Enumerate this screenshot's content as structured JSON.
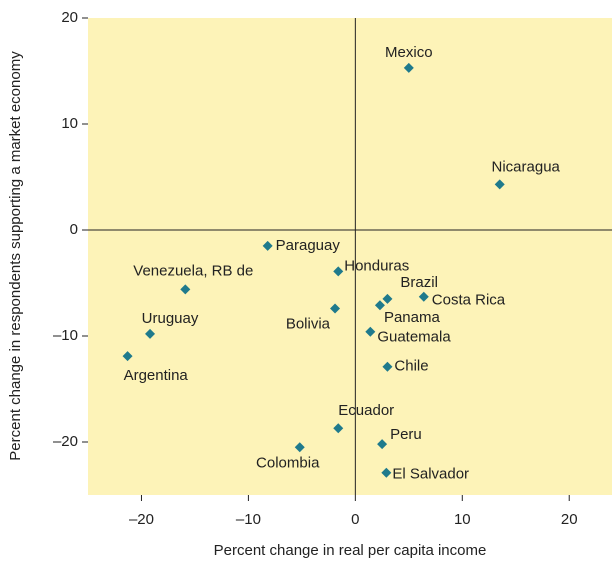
{
  "chart_data": {
    "type": "scatter",
    "x_label": "Percent change in real per capita income",
    "y_label": "Percent change in respondents supporting a market economy",
    "labels": [
      "Mexico",
      "Nicaragua",
      "Paraguay",
      "Honduras",
      "Venezuela, RB de",
      "Brazil",
      "Costa Rica",
      "Panama",
      "Bolivia",
      "Uruguay",
      "Guatemala",
      "Argentina",
      "Chile",
      "Ecuador",
      "Peru",
      "Colombia",
      "El Salvador"
    ],
    "x": [
      5.0,
      13.5,
      -8.2,
      -1.6,
      -15.9,
      3.0,
      6.4,
      2.3,
      -1.9,
      -19.2,
      1.4,
      -21.3,
      3.0,
      -1.6,
      2.5,
      -5.2,
      2.9
    ],
    "values": [
      15.3,
      4.3,
      -1.5,
      -3.9,
      -5.6,
      -6.5,
      -6.3,
      -7.1,
      -7.4,
      -9.8,
      -9.6,
      -11.9,
      -12.9,
      -18.7,
      -20.2,
      -20.5,
      -22.9
    ],
    "color": "#1f7a8c",
    "background": "#fdf3b8",
    "xlim": [
      -25,
      24
    ],
    "ylim": [
      -25,
      20
    ],
    "xticks": [
      {
        "value": -20,
        "label": "–20"
      },
      {
        "value": -10,
        "label": "–10"
      },
      0,
      10,
      20
    ],
    "yticks": [
      {
        "value": -20,
        "label": "–20"
      },
      {
        "value": -10,
        "label": "–10"
      },
      0,
      10,
      20
    ]
  }
}
